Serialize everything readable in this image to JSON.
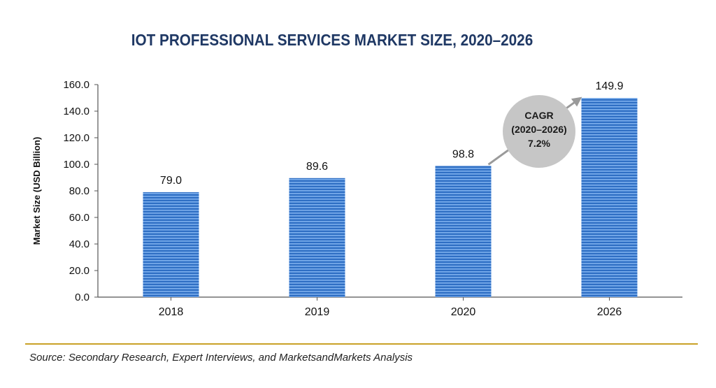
{
  "colors": {
    "title": "#1f3864",
    "bar": "#2f6fc4",
    "bar_light": "#6fa3e6",
    "axis": "#555555",
    "callout_fill": "#c6c6c6",
    "callout_arrow": "#9a9a9a",
    "source_rule": "#c9a227"
  },
  "chart_data": {
    "type": "bar",
    "title": "IOT PROFESSIONAL SERVICES MARKET SIZE, 2020–2026",
    "ylabel": "Market Size (USD Billion)",
    "xlabel": "",
    "categories": [
      "2018",
      "2019",
      "2020",
      "2026"
    ],
    "values": [
      79.0,
      89.6,
      98.8,
      149.9
    ],
    "value_labels": [
      "79.0",
      "89.6",
      "98.8",
      "149.9"
    ],
    "ylim": [
      0,
      160
    ],
    "yticks": [
      0,
      20,
      40,
      60,
      80,
      100,
      120,
      140,
      160
    ],
    "ytick_labels": [
      "0.0",
      "20.0",
      "40.0",
      "60.0",
      "80.0",
      "100.0",
      "120.0",
      "140.0",
      "160.0"
    ],
    "grid": false,
    "legend": "none",
    "annotation": {
      "line1": "CAGR",
      "line2": "(2020–2026)",
      "line3": "7.2%"
    }
  },
  "footer": {
    "source": "Source: Secondary Research, Expert Interviews, and MarketsandMarkets Analysis"
  }
}
